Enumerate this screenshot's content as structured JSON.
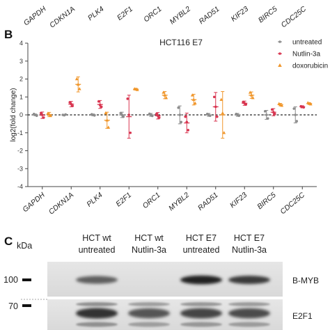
{
  "top_strip": {
    "genes": [
      "GAPDH",
      "CDKN1A",
      "PLK4",
      "E2F1",
      "ORC1",
      "MYBL2",
      "RAD51",
      "KIF23",
      "BIRC5",
      "CDC25C"
    ]
  },
  "panel_b": {
    "letter": "B"
  },
  "chart_data": {
    "type": "scatter",
    "title": "HCT116 E7",
    "ylabel": "log2(fold change)",
    "xlabel": "",
    "ylim": [
      -4,
      4
    ],
    "yticks": [
      -4,
      -3,
      -2,
      -1,
      0,
      1,
      2,
      3,
      4
    ],
    "grid": false,
    "reference_line": 0,
    "legend_position": "top-right",
    "categories": [
      "GAPDH",
      "CDKN1A",
      "PLK4",
      "E2F1",
      "ORC1",
      "MYBL2",
      "RAD51",
      "KIF23",
      "BIRC5",
      "CDC25C"
    ],
    "series": [
      {
        "name": "untreated",
        "color": "#8c8c8c",
        "marker": "dot",
        "mean": [
          0.0,
          0.0,
          0.0,
          0.0,
          0.0,
          0.0,
          0.0,
          0.0,
          0.0,
          0.0
        ],
        "err": [
          0.05,
          0.03,
          0.05,
          0.15,
          0.08,
          0.5,
          0.08,
          0.08,
          0.25,
          0.45
        ],
        "points": [
          [
            0.05,
            -0.05,
            0.0
          ],
          [
            0.0,
            0.02,
            -0.02
          ],
          [
            0.03,
            -0.03,
            0.0
          ],
          [
            0.1,
            -0.1,
            0.0
          ],
          [
            0.06,
            -0.06,
            0.0
          ],
          [
            0.4,
            -0.4,
            0.0
          ],
          [
            0.05,
            -0.05,
            0.0
          ],
          [
            0.05,
            -0.05,
            0.0
          ],
          [
            0.2,
            -0.2,
            0.0
          ],
          [
            0.35,
            -0.35,
            0.0
          ]
        ]
      },
      {
        "name": "Nutlin-3a",
        "color": "#d8344f",
        "marker": "dot",
        "mean": [
          -0.02,
          0.6,
          0.58,
          -0.1,
          -0.05,
          -0.45,
          0.45,
          0.65,
          0.15,
          0.45
        ],
        "err": [
          0.18,
          0.15,
          0.22,
          1.2,
          0.18,
          0.55,
          0.8,
          0.12,
          0.2,
          0.06
        ],
        "points": [
          [
            0.1,
            -0.15,
            0.0
          ],
          [
            0.7,
            0.5,
            0.6
          ],
          [
            0.75,
            0.45,
            0.55
          ],
          [
            0.9,
            -1.0,
            0.0
          ],
          [
            0.05,
            -0.15,
            -0.05
          ],
          [
            -0.1,
            -0.85,
            -0.4
          ],
          [
            1.0,
            -0.1,
            0.45
          ],
          [
            0.72,
            0.58,
            0.65
          ],
          [
            0.3,
            0.05,
            0.15
          ],
          [
            0.48,
            0.42,
            0.45
          ]
        ]
      },
      {
        "name": "doxorubicin",
        "color": "#f0962a",
        "marker": "triangle",
        "mean": [
          0.02,
          1.7,
          -0.3,
          1.43,
          1.1,
          0.85,
          0.0,
          1.1,
          0.57,
          0.63
        ],
        "err": [
          0.12,
          0.42,
          0.45,
          0.05,
          0.2,
          0.3,
          1.3,
          0.18,
          0.07,
          0.05
        ],
        "points": [
          [
            0.08,
            -0.05,
            0.02
          ],
          [
            2.0,
            1.45,
            1.7
          ],
          [
            0.1,
            -0.7,
            -0.3
          ],
          [
            1.45,
            1.4,
            1.43
          ],
          [
            1.25,
            0.95,
            1.1
          ],
          [
            1.1,
            0.65,
            0.85
          ],
          [
            0.85,
            -1.0,
            0.1
          ],
          [
            1.25,
            0.95,
            1.1
          ],
          [
            0.62,
            0.52,
            0.57
          ],
          [
            0.67,
            0.6,
            0.63
          ]
        ]
      }
    ]
  },
  "panel_c": {
    "letter": "C",
    "kda_label": "kDa",
    "columns": [
      {
        "line1": "HCT wt",
        "line2": "untreated"
      },
      {
        "line1": "HCT wt",
        "line2": "Nutlin-3a"
      },
      {
        "line1": "HCT E7",
        "line2": "untreated"
      },
      {
        "line1": "HCT E7",
        "line2": "Nutlin-3a"
      }
    ],
    "markers": [
      "100",
      "70"
    ],
    "blots": [
      {
        "label": "B-MYB",
        "band_intensity": [
          0.55,
          0.0,
          0.9,
          0.75
        ]
      },
      {
        "label": "E2F1",
        "band_intensity": [
          0.8,
          0.6,
          0.7,
          0.65
        ]
      }
    ]
  }
}
